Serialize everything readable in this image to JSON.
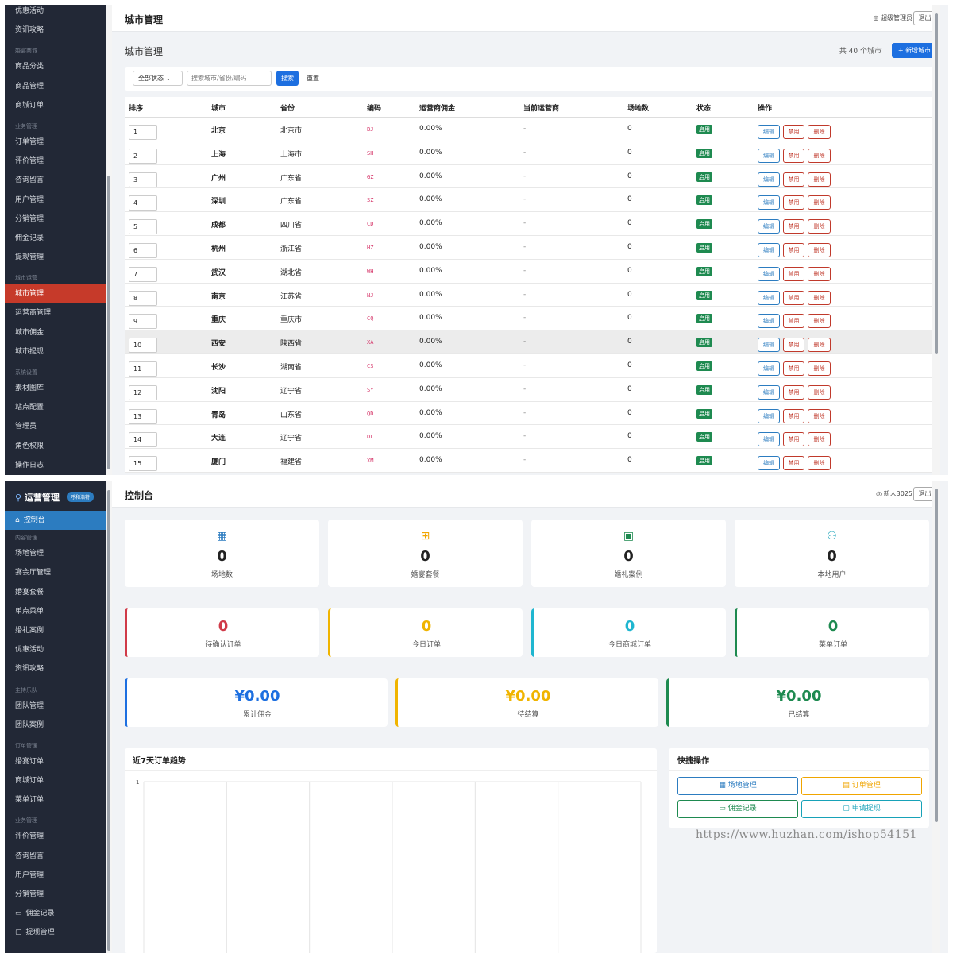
{
  "panel1": {
    "sidebar": {
      "items": [
        {
          "type": "item",
          "label": "优惠活动"
        },
        {
          "type": "item",
          "label": "资讯攻略"
        },
        {
          "type": "section",
          "label": "婚宴商城"
        },
        {
          "type": "item",
          "label": "商品分类"
        },
        {
          "type": "item",
          "label": "商品管理"
        },
        {
          "type": "item",
          "label": "商城订单"
        },
        {
          "type": "section",
          "label": "业务管理"
        },
        {
          "type": "item",
          "label": "订单管理"
        },
        {
          "type": "item",
          "label": "评价管理"
        },
        {
          "type": "item",
          "label": "咨询留言"
        },
        {
          "type": "item",
          "label": "用户管理"
        },
        {
          "type": "item",
          "label": "分销管理"
        },
        {
          "type": "item",
          "label": "佣金记录"
        },
        {
          "type": "item",
          "label": "提现管理"
        },
        {
          "type": "section",
          "label": "城市运营"
        },
        {
          "type": "item",
          "label": "城市管理",
          "active": true
        },
        {
          "type": "item",
          "label": "运营商管理"
        },
        {
          "type": "item",
          "label": "城市佣金"
        },
        {
          "type": "item",
          "label": "城市提现"
        },
        {
          "type": "section",
          "label": "系统设置"
        },
        {
          "type": "item",
          "label": "素材图库"
        },
        {
          "type": "item",
          "label": "站点配置"
        },
        {
          "type": "item",
          "label": "管理员"
        },
        {
          "type": "item",
          "label": "角色权限"
        },
        {
          "type": "item",
          "label": "操作日志"
        }
      ]
    },
    "header": {
      "title": "城市管理",
      "user": "超级管理员",
      "logout": "退出"
    },
    "page": {
      "heading": "城市管理",
      "count": "共 40 个城市",
      "add_button": "+ 新增城市"
    },
    "filter": {
      "status": "全部状态",
      "search_placeholder": "搜索城市/省份/编码",
      "search_button": "搜索",
      "reset_button": "重置"
    },
    "table": {
      "columns": [
        "排序",
        "城市",
        "省份",
        "编码",
        "运营商佣金",
        "当前运营商",
        "场地数",
        "状态",
        "操作"
      ],
      "status_label": "启用",
      "actions": {
        "edit": "编辑",
        "disable": "禁用",
        "delete": "删除"
      },
      "rows": [
        {
          "sort": "1",
          "city": "北京",
          "province": "北京市",
          "code": "BJ",
          "commission": "0.00%",
          "operator": "-",
          "venues": "0"
        },
        {
          "sort": "2",
          "city": "上海",
          "province": "上海市",
          "code": "SH",
          "commission": "0.00%",
          "operator": "-",
          "venues": "0"
        },
        {
          "sort": "3",
          "city": "广州",
          "province": "广东省",
          "code": "GZ",
          "commission": "0.00%",
          "operator": "-",
          "venues": "0"
        },
        {
          "sort": "4",
          "city": "深圳",
          "province": "广东省",
          "code": "SZ",
          "commission": "0.00%",
          "operator": "-",
          "venues": "0"
        },
        {
          "sort": "5",
          "city": "成都",
          "province": "四川省",
          "code": "CD",
          "commission": "0.00%",
          "operator": "-",
          "venues": "0"
        },
        {
          "sort": "6",
          "city": "杭州",
          "province": "浙江省",
          "code": "HZ",
          "commission": "0.00%",
          "operator": "-",
          "venues": "0"
        },
        {
          "sort": "7",
          "city": "武汉",
          "province": "湖北省",
          "code": "WH",
          "commission": "0.00%",
          "operator": "-",
          "venues": "0"
        },
        {
          "sort": "8",
          "city": "南京",
          "province": "江苏省",
          "code": "NJ",
          "commission": "0.00%",
          "operator": "-",
          "venues": "0"
        },
        {
          "sort": "9",
          "city": "重庆",
          "province": "重庆市",
          "code": "CQ",
          "commission": "0.00%",
          "operator": "-",
          "venues": "0"
        },
        {
          "sort": "10",
          "city": "西安",
          "province": "陕西省",
          "code": "XA",
          "commission": "0.00%",
          "operator": "-",
          "venues": "0",
          "highlight": true
        },
        {
          "sort": "11",
          "city": "长沙",
          "province": "湖南省",
          "code": "CS",
          "commission": "0.00%",
          "operator": "-",
          "venues": "0"
        },
        {
          "sort": "12",
          "city": "沈阳",
          "province": "辽宁省",
          "code": "SY",
          "commission": "0.00%",
          "operator": "-",
          "venues": "0"
        },
        {
          "sort": "13",
          "city": "青岛",
          "province": "山东省",
          "code": "QD",
          "commission": "0.00%",
          "operator": "-",
          "venues": "0"
        },
        {
          "sort": "14",
          "city": "大连",
          "province": "辽宁省",
          "code": "DL",
          "commission": "0.00%",
          "operator": "-",
          "venues": "0"
        },
        {
          "sort": "15",
          "city": "厦门",
          "province": "福建省",
          "code": "XM",
          "commission": "0.00%",
          "operator": "-",
          "venues": "0"
        }
      ]
    }
  },
  "panel2": {
    "sidebar": {
      "logo": "运营管理",
      "logo_tag": "呼和浩特",
      "items": [
        {
          "type": "item",
          "label": "控制台",
          "active": true,
          "icon": "home-icon"
        },
        {
          "type": "section",
          "label": "内容管理"
        },
        {
          "type": "item",
          "label": "场地管理"
        },
        {
          "type": "item",
          "label": "宴会厅管理"
        },
        {
          "type": "item",
          "label": "婚宴套餐"
        },
        {
          "type": "item",
          "label": "单点菜单"
        },
        {
          "type": "item",
          "label": "婚礼案例"
        },
        {
          "type": "item",
          "label": "优惠活动"
        },
        {
          "type": "item",
          "label": "资讯攻略"
        },
        {
          "type": "section",
          "label": "主持乐队"
        },
        {
          "type": "item",
          "label": "团队管理"
        },
        {
          "type": "item",
          "label": "团队案例"
        },
        {
          "type": "section",
          "label": "订单管理"
        },
        {
          "type": "item",
          "label": "婚宴订单"
        },
        {
          "type": "item",
          "label": "商城订单"
        },
        {
          "type": "item",
          "label": "菜单订单"
        },
        {
          "type": "section",
          "label": "业务管理"
        },
        {
          "type": "item",
          "label": "评价管理"
        },
        {
          "type": "item",
          "label": "咨询留言"
        },
        {
          "type": "item",
          "label": "用户管理"
        },
        {
          "type": "item",
          "label": "分销管理"
        },
        {
          "type": "item",
          "label": "佣金记录",
          "icon": "cash-icon"
        },
        {
          "type": "item",
          "label": "提现管理",
          "icon": "wallet-icon"
        }
      ]
    },
    "header": {
      "title": "控制台",
      "user": "新人3025",
      "logout": "退出"
    },
    "stats": [
      {
        "value": "0",
        "label": "场地数",
        "icon": "building-icon",
        "color": "#2c7cc0"
      },
      {
        "value": "0",
        "label": "婚宴套餐",
        "icon": "gift-icon",
        "color": "#f0a500"
      },
      {
        "value": "0",
        "label": "婚礼案例",
        "icon": "image-icon",
        "color": "#1e8a50"
      },
      {
        "value": "0",
        "label": "本地用户",
        "icon": "users-icon",
        "color": "#17a2b8"
      }
    ],
    "orders": [
      {
        "value": "0",
        "label": "待确认订单",
        "color": "#d03a48"
      },
      {
        "value": "0",
        "label": "今日订单",
        "color": "#f0b400"
      },
      {
        "value": "0",
        "label": "今日商城订单",
        "color": "#1fb6d0"
      },
      {
        "value": "0",
        "label": "菜单订单",
        "color": "#1e8a50"
      }
    ],
    "money": [
      {
        "value": "¥0.00",
        "label": "累计佣金",
        "color": "#1d6fe0"
      },
      {
        "value": "¥0.00",
        "label": "待结算",
        "color": "#f0b400"
      },
      {
        "value": "¥0.00",
        "label": "已结算",
        "color": "#1e8a50"
      }
    ],
    "chart": {
      "title": "近7天订单趋势",
      "ytick": "1"
    },
    "chart_data": {
      "type": "line",
      "title": "近7天订单趋势",
      "series": [],
      "yticks": [
        "1"
      ]
    },
    "quick": {
      "title": "快捷操作",
      "buttons": [
        {
          "label": "场地管理",
          "icon": "building-icon",
          "color": "#2c7cc0"
        },
        {
          "label": "订单管理",
          "icon": "list-icon",
          "color": "#f0a500"
        },
        {
          "label": "佣金记录",
          "icon": "cash-icon",
          "color": "#1e8a50"
        },
        {
          "label": "申请提现",
          "icon": "wallet-icon",
          "color": "#17a2b8"
        }
      ]
    }
  },
  "watermark": "https://www.huzhan.com/ishop54151"
}
